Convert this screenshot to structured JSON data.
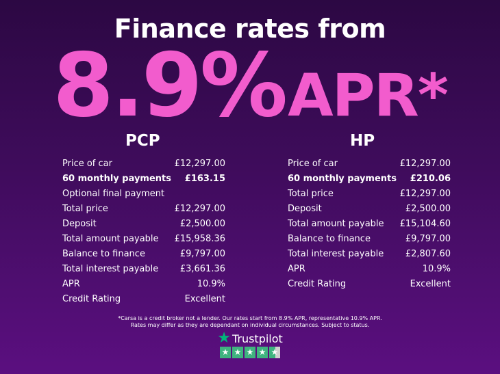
{
  "title": "Finance rates from",
  "headline": {
    "rate": "8.9%",
    "suffix": "APR*"
  },
  "colors": {
    "accent": "#f25ccd",
    "background_top": "#2c0843",
    "background_bottom": "#5b0f80",
    "trustpilot_green": "#3fb37f"
  },
  "pcp": {
    "heading": "PCP",
    "rows": [
      {
        "label": "Price of car",
        "value": "£12,297.00"
      },
      {
        "label": "60 monthly payments",
        "value": "£163.15",
        "bold": true
      },
      {
        "label": "Optional final payment",
        "value": ""
      },
      {
        "label": "Total price",
        "value": "£12,297.00"
      },
      {
        "label": "Deposit",
        "value": "£2,500.00"
      },
      {
        "label": "Total amount payable",
        "value": "£15,958.36"
      },
      {
        "label": "Balance to finance",
        "value": "£9,797.00"
      },
      {
        "label": "Total interest payable",
        "value": "£3,661.36"
      },
      {
        "label": "APR",
        "value": "10.9%"
      },
      {
        "label": "Credit Rating",
        "value": "Excellent"
      }
    ]
  },
  "hp": {
    "heading": "HP",
    "rows": [
      {
        "label": "Price of car",
        "value": "£12,297.00"
      },
      {
        "label": "60 monthly payments",
        "value": "£210.06",
        "bold": true
      },
      {
        "label": "Total price",
        "value": "£12,297.00"
      },
      {
        "label": "Deposit",
        "value": "£2,500.00"
      },
      {
        "label": "Total amount payable",
        "value": "£15,104.60"
      },
      {
        "label": "Balance to finance",
        "value": "£9,797.00"
      },
      {
        "label": "Total interest payable",
        "value": "£2,807.60"
      },
      {
        "label": "APR",
        "value": "10.9%"
      },
      {
        "label": "Credit Rating",
        "value": "Excellent"
      }
    ]
  },
  "disclaimer": {
    "line1": "*Carsa is a credit broker not a lender. Our rates start from 8.9% APR, representative 10.9% APR.",
    "line2": "Rates may differ as they are dependant on individual circumstances. Subject to status."
  },
  "trustpilot": {
    "name": "Trustpilot",
    "rating_stars": 4.5,
    "max_stars": 5,
    "icon": "star-icon"
  }
}
